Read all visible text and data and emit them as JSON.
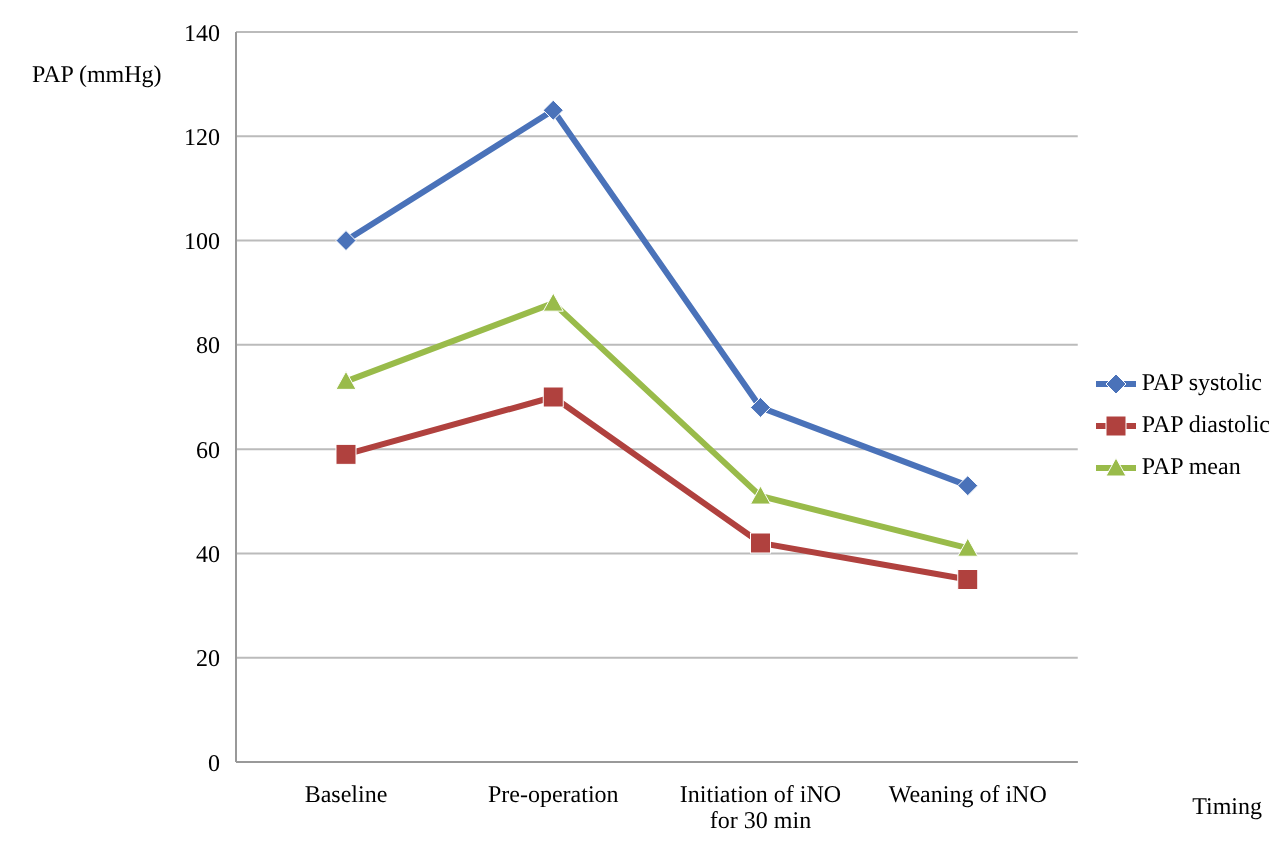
{
  "chart_data": {
    "type": "line",
    "xlabel": "Timing",
    "ylabel": "PAP (mmHg)",
    "categories": [
      "Baseline",
      "Pre-operation",
      "Initiation of iNO for 30 min",
      "Weaning of iNO"
    ],
    "series": [
      {
        "name": "PAP systolic",
        "color": "#4a72b9",
        "marker": "diamond",
        "values": [
          100,
          125,
          68,
          53
        ]
      },
      {
        "name": "PAP diastolic",
        "color": "#b0413e",
        "marker": "square",
        "values": [
          59,
          70,
          42,
          35
        ]
      },
      {
        "name": "PAP mean",
        "color": "#99bb4a",
        "marker": "triangle",
        "values": [
          73,
          88,
          51,
          41
        ]
      }
    ],
    "ylim": [
      0,
      140
    ],
    "yticks": [
      0,
      20,
      40,
      60,
      80,
      100,
      120,
      140
    ],
    "grid": "y",
    "legend": "right"
  }
}
